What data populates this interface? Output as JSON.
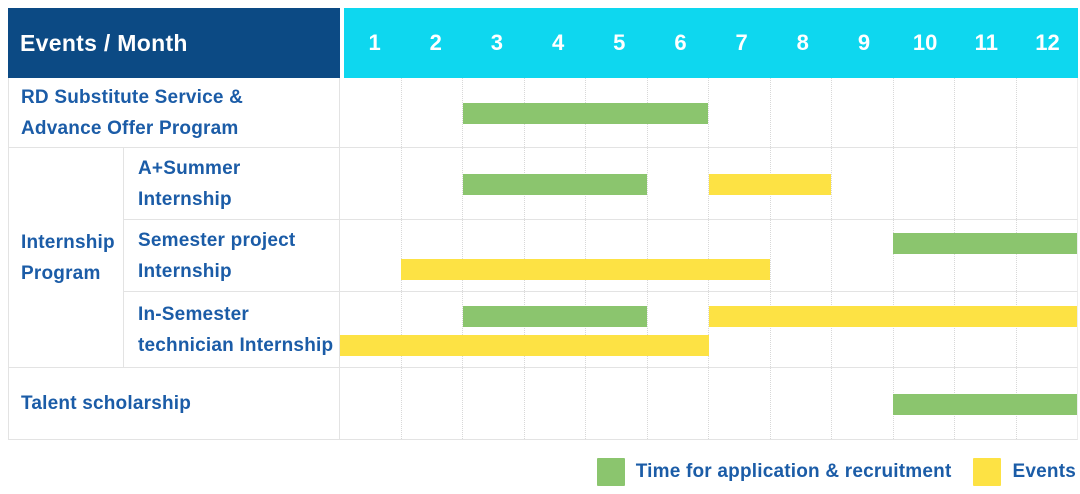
{
  "colors": {
    "header_bg": "#0c4a84",
    "month_header_bg": "#0ed7ef",
    "header_text": "#ffffff",
    "label_text": "#1b5ca7",
    "application_green": "#8bc56e",
    "events_yellow": "#fde244",
    "row_grid_line": "#e3e3e3",
    "month_divider_dotted": "#d8d8d8"
  },
  "chart_data": {
    "type": "bar",
    "subtype": "gantt-schedule",
    "title": "Events / Month",
    "x_axis": {
      "label": "Month",
      "ticks": [
        "1",
        "2",
        "3",
        "4",
        "5",
        "6",
        "7",
        "8",
        "9",
        "10",
        "11",
        "12"
      ],
      "range": [
        1,
        12
      ]
    },
    "grid": {
      "vertical_month_lines": "dotted",
      "horizontal_row_lines": "solid"
    },
    "groups": [
      {
        "label": "Internship Program",
        "lines": [
          "Internship",
          "Program"
        ],
        "row_span": 3
      }
    ],
    "rows": [
      {
        "label": "RD Substitute Service & Advance Offer Program",
        "lines": [
          "RD Substitute Service &",
          "Advance Offer Program"
        ],
        "group": null,
        "bars": [
          {
            "series": "Time for application & recruitment",
            "start_month": 3,
            "end_month": 6,
            "line": "center"
          }
        ]
      },
      {
        "label": "A+Summer Internship",
        "lines": [
          "A+Summer",
          "Internship"
        ],
        "group": "Internship Program",
        "bars": [
          {
            "series": "Time for application & recruitment",
            "start_month": 3,
            "end_month": 5,
            "line": "center"
          },
          {
            "series": "Events",
            "start_month": 7,
            "end_month": 8,
            "line": "center"
          }
        ]
      },
      {
        "label": "Semester project Internship",
        "lines": [
          "Semester project",
          "Internship"
        ],
        "group": "Internship Program",
        "bars": [
          {
            "series": "Time for application & recruitment",
            "start_month": 10,
            "end_month": 12,
            "line": "top"
          },
          {
            "series": "Events",
            "start_month": 2,
            "end_month": 7,
            "line": "bottom"
          }
        ]
      },
      {
        "label": "In-Semester technician Internship",
        "lines": [
          "In-Semester",
          "technician Internship"
        ],
        "group": "Internship Program",
        "bars": [
          {
            "series": "Time for application & recruitment",
            "start_month": 3,
            "end_month": 5,
            "line": "top"
          },
          {
            "series": "Events",
            "start_month": 7,
            "end_month": 12,
            "line": "top"
          },
          {
            "series": "Events",
            "start_month": 1,
            "end_month": 6,
            "line": "bottom"
          }
        ]
      },
      {
        "label": "Talent scholarship",
        "lines": [
          "Talent scholarship"
        ],
        "group": null,
        "bars": [
          {
            "series": "Time for application & recruitment",
            "start_month": 10,
            "end_month": 12,
            "line": "center"
          }
        ]
      }
    ],
    "legend": [
      {
        "label": "Time for application & recruitment",
        "color": "#8bc56e"
      },
      {
        "label": "Events",
        "color": "#fde244"
      }
    ],
    "legend_position": "bottom-right"
  }
}
